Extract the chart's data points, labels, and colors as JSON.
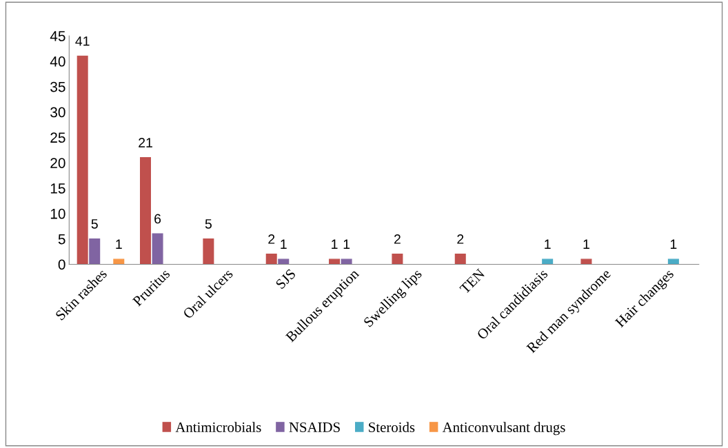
{
  "chart_data": {
    "type": "bar",
    "categories": [
      "Skin rashes",
      "Pruritus",
      "Oral ulcers",
      "SJS",
      "Bullous eruption",
      "Swelling lips",
      "TEN",
      "Oral candidiasis",
      "Red man syndrome",
      "Hair changes"
    ],
    "series": [
      {
        "name": "Antimicrobials",
        "color": "#c0504d",
        "values": [
          41,
          21,
          5,
          2,
          1,
          2,
          2,
          null,
          1,
          null
        ]
      },
      {
        "name": "NSAIDS",
        "color": "#8064a2",
        "values": [
          5,
          6,
          null,
          1,
          1,
          null,
          null,
          null,
          null,
          null
        ]
      },
      {
        "name": "Steroids",
        "color": "#4bacc6",
        "values": [
          null,
          null,
          null,
          null,
          null,
          null,
          null,
          1,
          null,
          1
        ]
      },
      {
        "name": "Anticonvulsant drugs",
        "color": "#f79646",
        "values": [
          1,
          null,
          null,
          null,
          null,
          null,
          null,
          null,
          null,
          null
        ]
      }
    ],
    "ylim": [
      0,
      45
    ],
    "yticks": [
      0,
      5,
      10,
      15,
      20,
      25,
      30,
      35,
      40,
      45
    ],
    "grid": false,
    "legend": "bottom",
    "data_labels": true
  }
}
